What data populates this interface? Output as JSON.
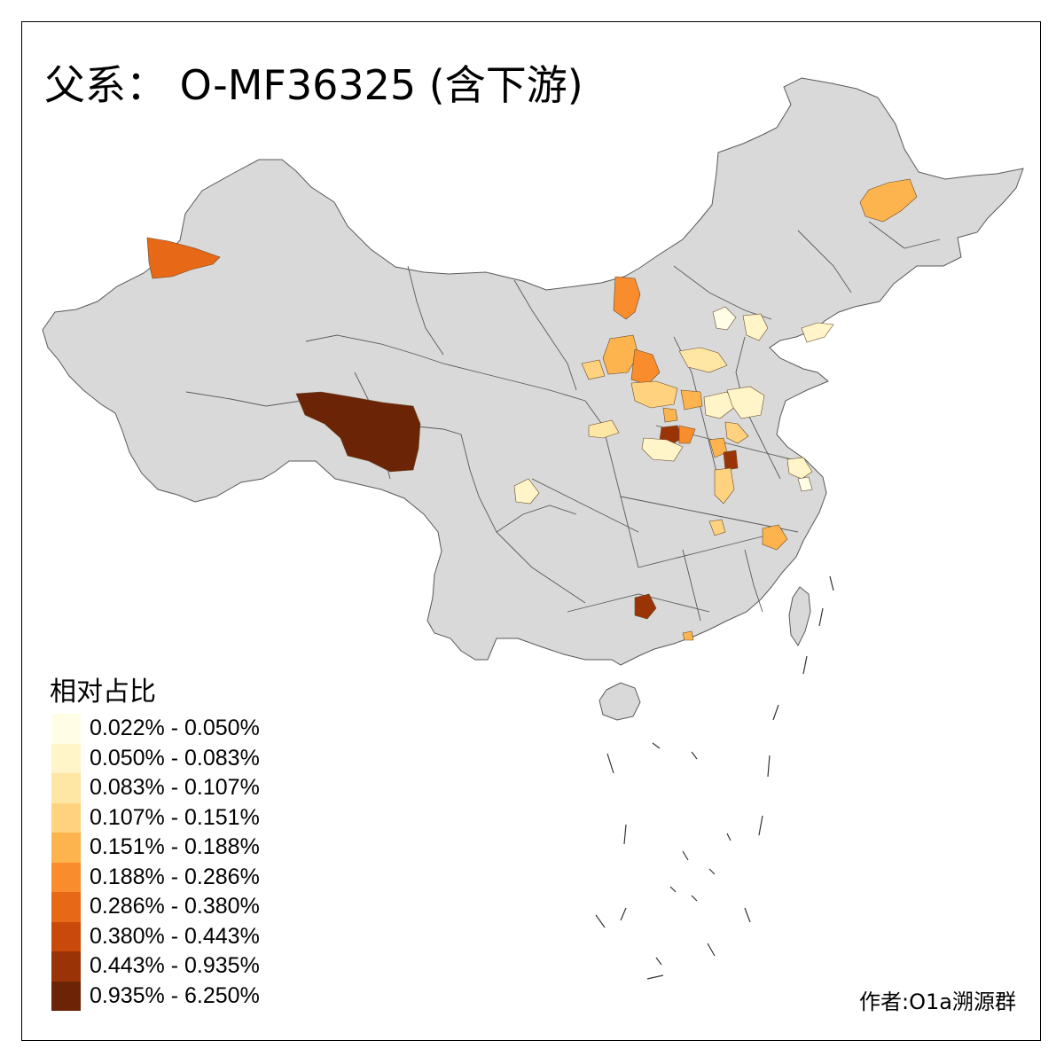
{
  "title": "父系： O-MF36325 (含下游)",
  "credit": "作者:O1a溯源群",
  "legend": {
    "title": "相对占比",
    "bins": [
      {
        "label": "0.022% - 0.050%",
        "color": "#FFFDE6"
      },
      {
        "label": "0.050% - 0.083%",
        "color": "#FFF5C8"
      },
      {
        "label": "0.083% - 0.107%",
        "color": "#FEE6A5"
      },
      {
        "label": "0.107% - 0.151%",
        "color": "#FED27E"
      },
      {
        "label": "0.151% - 0.188%",
        "color": "#FDB44E"
      },
      {
        "label": "0.188% - 0.286%",
        "color": "#F98D2D"
      },
      {
        "label": "0.286% - 0.380%",
        "color": "#E76817"
      },
      {
        "label": "0.380% - 0.443%",
        "color": "#C9490B"
      },
      {
        "label": "0.443% - 0.935%",
        "color": "#9A3406"
      },
      {
        "label": "0.935% - 6.250%",
        "color": "#6B2506"
      }
    ]
  },
  "map": {
    "base_color": "#D9D9D9",
    "border_color": "#595959",
    "background": "#FFFFFF"
  }
}
